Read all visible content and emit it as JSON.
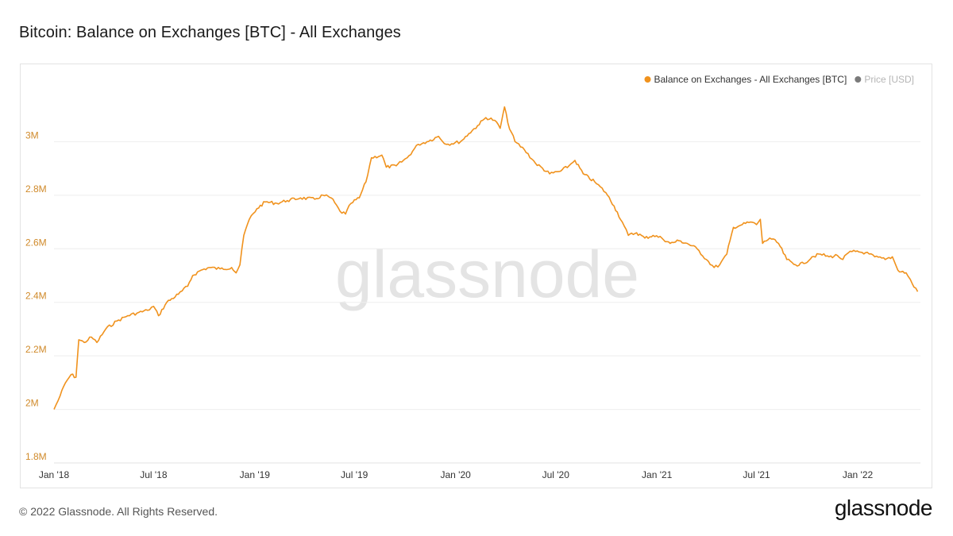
{
  "header": {
    "title": "Bitcoin: Balance on Exchanges [BTC] - All Exchanges"
  },
  "watermark": "glassnode",
  "footer": {
    "copyright": "© 2022 Glassnode. All Rights Reserved.",
    "logo_text": "glassnode"
  },
  "colors": {
    "series": "#f0921d",
    "price_legend": "#7a7a7a",
    "y_tick": "#d08a2a",
    "x_tick": "#333333",
    "grid": "#eeeeee",
    "watermark": "#e4e4e4"
  },
  "chart_data": {
    "type": "line",
    "title": "Bitcoin: Balance on Exchanges [BTC] - All Exchanges",
    "xlabel": "",
    "ylabel": "",
    "x_range": [
      "2018-01-01",
      "2022-04-25"
    ],
    "ylim": [
      1800000,
      3200000
    ],
    "grid": true,
    "legend_position": "top-right",
    "legend": [
      {
        "label": "Balance on Exchanges - All Exchanges [BTC]",
        "color": "#f0921d",
        "active": true
      },
      {
        "label": "Price [USD]",
        "color": "#7a7a7a",
        "active": false
      }
    ],
    "y_ticks": [
      {
        "value": 1800000,
        "label": "1.8M"
      },
      {
        "value": 2000000,
        "label": "2M"
      },
      {
        "value": 2200000,
        "label": "2.2M"
      },
      {
        "value": 2400000,
        "label": "2.4M"
      },
      {
        "value": 2600000,
        "label": "2.6M"
      },
      {
        "value": 2800000,
        "label": "2.8M"
      },
      {
        "value": 3000000,
        "label": "3M"
      }
    ],
    "x_ticks": [
      {
        "date": "2018-01-01",
        "label": "Jan '18"
      },
      {
        "date": "2018-07-01",
        "label": "Jul '18"
      },
      {
        "date": "2019-01-01",
        "label": "Jan '19"
      },
      {
        "date": "2019-07-01",
        "label": "Jul '19"
      },
      {
        "date": "2020-01-01",
        "label": "Jan '20"
      },
      {
        "date": "2020-07-01",
        "label": "Jul '20"
      },
      {
        "date": "2021-01-01",
        "label": "Jan '21"
      },
      {
        "date": "2021-07-01",
        "label": "Jul '21"
      },
      {
        "date": "2022-01-01",
        "label": "Jan '22"
      }
    ],
    "series": [
      {
        "name": "Balance on Exchanges - All Exchanges [BTC]",
        "color": "#f0921d",
        "points": [
          [
            "2018-01-01",
            2000000
          ],
          [
            "2018-01-12",
            2050000
          ],
          [
            "2018-01-22",
            2100000
          ],
          [
            "2018-02-01",
            2130000
          ],
          [
            "2018-02-10",
            2120000
          ],
          [
            "2018-02-15",
            2260000
          ],
          [
            "2018-02-25",
            2250000
          ],
          [
            "2018-03-10",
            2270000
          ],
          [
            "2018-03-20",
            2250000
          ],
          [
            "2018-04-05",
            2300000
          ],
          [
            "2018-04-25",
            2330000
          ],
          [
            "2018-05-15",
            2350000
          ],
          [
            "2018-06-01",
            2360000
          ],
          [
            "2018-06-20",
            2370000
          ],
          [
            "2018-07-01",
            2385000
          ],
          [
            "2018-07-10",
            2350000
          ],
          [
            "2018-07-25",
            2400000
          ],
          [
            "2018-08-15",
            2430000
          ],
          [
            "2018-09-01",
            2460000
          ],
          [
            "2018-09-10",
            2500000
          ],
          [
            "2018-09-25",
            2520000
          ],
          [
            "2018-10-10",
            2530000
          ],
          [
            "2018-10-30",
            2525000
          ],
          [
            "2018-11-20",
            2530000
          ],
          [
            "2018-11-28",
            2510000
          ],
          [
            "2018-12-05",
            2540000
          ],
          [
            "2018-12-12",
            2650000
          ],
          [
            "2018-12-22",
            2710000
          ],
          [
            "2019-01-05",
            2750000
          ],
          [
            "2019-01-20",
            2775000
          ],
          [
            "2019-02-10",
            2770000
          ],
          [
            "2019-03-01",
            2780000
          ],
          [
            "2019-03-25",
            2790000
          ],
          [
            "2019-04-20",
            2785000
          ],
          [
            "2019-05-05",
            2800000
          ],
          [
            "2019-05-20",
            2790000
          ],
          [
            "2019-06-05",
            2740000
          ],
          [
            "2019-06-15",
            2730000
          ],
          [
            "2019-06-25",
            2770000
          ],
          [
            "2019-07-10",
            2790000
          ],
          [
            "2019-07-22",
            2850000
          ],
          [
            "2019-08-01",
            2940000
          ],
          [
            "2019-08-20",
            2950000
          ],
          [
            "2019-08-28",
            2905000
          ],
          [
            "2019-09-15",
            2910000
          ],
          [
            "2019-10-05",
            2940000
          ],
          [
            "2019-10-25",
            2990000
          ],
          [
            "2019-11-10",
            3000000
          ],
          [
            "2019-12-01",
            3020000
          ],
          [
            "2019-12-15",
            2990000
          ],
          [
            "2020-01-10",
            3000000
          ],
          [
            "2020-01-25",
            3030000
          ],
          [
            "2020-02-10",
            3060000
          ],
          [
            "2020-02-25",
            3090000
          ],
          [
            "2020-03-12",
            3080000
          ],
          [
            "2020-03-22",
            3050000
          ],
          [
            "2020-03-30",
            3130000
          ],
          [
            "2020-04-05",
            3070000
          ],
          [
            "2020-04-18",
            3000000
          ],
          [
            "2020-05-05",
            2970000
          ],
          [
            "2020-05-25",
            2920000
          ],
          [
            "2020-06-20",
            2880000
          ],
          [
            "2020-07-10",
            2890000
          ],
          [
            "2020-07-25",
            2910000
          ],
          [
            "2020-08-05",
            2930000
          ],
          [
            "2020-08-20",
            2880000
          ],
          [
            "2020-09-10",
            2850000
          ],
          [
            "2020-09-30",
            2810000
          ],
          [
            "2020-10-15",
            2760000
          ],
          [
            "2020-10-30",
            2700000
          ],
          [
            "2020-11-10",
            2650000
          ],
          [
            "2020-11-25",
            2660000
          ],
          [
            "2020-12-10",
            2640000
          ],
          [
            "2020-12-25",
            2650000
          ],
          [
            "2021-01-10",
            2640000
          ],
          [
            "2021-01-25",
            2620000
          ],
          [
            "2021-02-10",
            2630000
          ],
          [
            "2021-02-25",
            2620000
          ],
          [
            "2021-03-15",
            2600000
          ],
          [
            "2021-04-01",
            2560000
          ],
          [
            "2021-04-15",
            2530000
          ],
          [
            "2021-04-25",
            2540000
          ],
          [
            "2021-05-08",
            2580000
          ],
          [
            "2021-05-20",
            2680000
          ],
          [
            "2021-06-05",
            2690000
          ],
          [
            "2021-06-20",
            2700000
          ],
          [
            "2021-07-01",
            2690000
          ],
          [
            "2021-07-08",
            2710000
          ],
          [
            "2021-07-12",
            2620000
          ],
          [
            "2021-07-25",
            2640000
          ],
          [
            "2021-08-10",
            2620000
          ],
          [
            "2021-08-25",
            2560000
          ],
          [
            "2021-09-10",
            2540000
          ],
          [
            "2021-09-25",
            2545000
          ],
          [
            "2021-10-10",
            2570000
          ],
          [
            "2021-10-25",
            2580000
          ],
          [
            "2021-11-10",
            2570000
          ],
          [
            "2021-11-25",
            2575000
          ],
          [
            "2021-12-05",
            2560000
          ],
          [
            "2021-12-15",
            2585000
          ],
          [
            "2021-12-28",
            2590000
          ],
          [
            "2022-01-15",
            2585000
          ],
          [
            "2022-02-01",
            2570000
          ],
          [
            "2022-02-20",
            2560000
          ],
          [
            "2022-03-05",
            2570000
          ],
          [
            "2022-03-15",
            2520000
          ],
          [
            "2022-03-30",
            2510000
          ],
          [
            "2022-04-10",
            2470000
          ],
          [
            "2022-04-20",
            2440000
          ]
        ]
      }
    ]
  }
}
